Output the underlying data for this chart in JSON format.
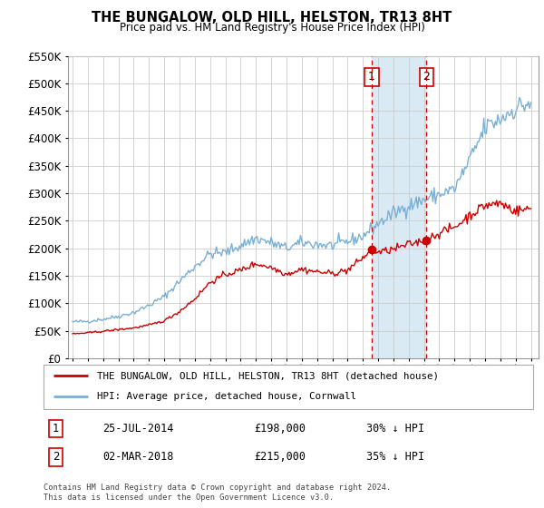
{
  "title": "THE BUNGALOW, OLD HILL, HELSTON, TR13 8HT",
  "subtitle": "Price paid vs. HM Land Registry's House Price Index (HPI)",
  "legend_line1": "THE BUNGALOW, OLD HILL, HELSTON, TR13 8HT (detached house)",
  "legend_line2": "HPI: Average price, detached house, Cornwall",
  "footnote": "Contains HM Land Registry data © Crown copyright and database right 2024.\nThis data is licensed under the Open Government Licence v3.0.",
  "sale1_label": "1",
  "sale1_date": "25-JUL-2014",
  "sale1_price": "£198,000",
  "sale1_hpi": "30% ↓ HPI",
  "sale1_year": 2014.58,
  "sale1_value": 198000,
  "sale2_label": "2",
  "sale2_date": "02-MAR-2018",
  "sale2_price": "£215,000",
  "sale2_hpi": "35% ↓ HPI",
  "sale2_year": 2018.17,
  "sale2_value": 215000,
  "property_color": "#cc0000",
  "hpi_color": "#7ab0d4",
  "shade_color": "#daeaf5",
  "vline_color": "#cc0000",
  "marker_border_color": "#cc0000",
  "ylim": [
    0,
    550000
  ],
  "xlim": [
    1994.7,
    2025.5
  ],
  "background_color": "#f0f4f8"
}
